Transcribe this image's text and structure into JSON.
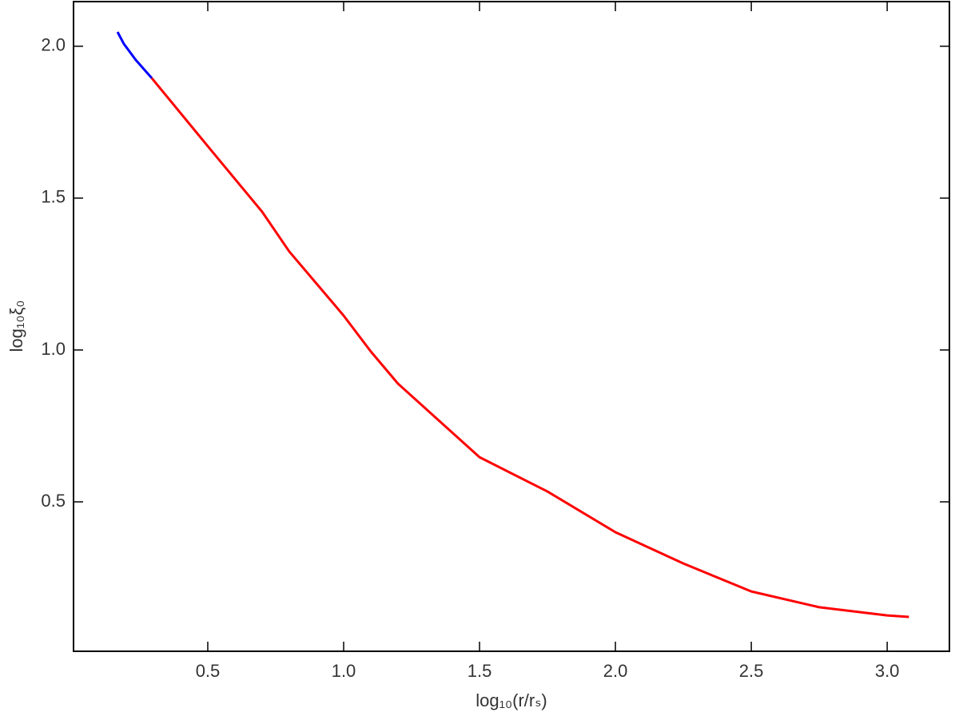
{
  "chart_data": {
    "type": "line",
    "x_label": "log₁₀(r/rₛ)",
    "y_label": "log₁₀ξ₀",
    "xlim": [
      0.006,
      3.229
    ],
    "ylim": [
      0.008,
      2.147
    ],
    "xticks": [
      0.5,
      {
        "value": 1,
        "label": "1.0"
      },
      1.5,
      {
        "value": 2,
        "label": "2.0"
      },
      2.5,
      {
        "value": 3,
        "label": "3.0"
      }
    ],
    "yticks": [
      0.5,
      {
        "value": 1,
        "label": "1.0"
      },
      1.5,
      {
        "value": 2,
        "label": "2.0"
      }
    ],
    "series": [
      {
        "color": "#0000ff",
        "x": [
          0.168,
          0.191,
          0.235,
          0.294
        ],
        "values": [
          2.047,
          2.008,
          1.955,
          1.895
        ]
      },
      {
        "color": "#ff0000",
        "x": [
          0.294,
          0.5,
          0.7,
          0.8,
          0.95,
          1.0,
          1.1,
          1.2,
          1.5,
          1.75,
          2.0,
          2.25,
          2.5,
          2.75,
          3.0,
          3.08
        ],
        "values": [
          1.895,
          1.671,
          1.455,
          1.324,
          1.166,
          1.113,
          0.995,
          0.889,
          0.647,
          0.534,
          0.4,
          0.297,
          0.205,
          0.153,
          0.126,
          0.121
        ]
      }
    ]
  }
}
